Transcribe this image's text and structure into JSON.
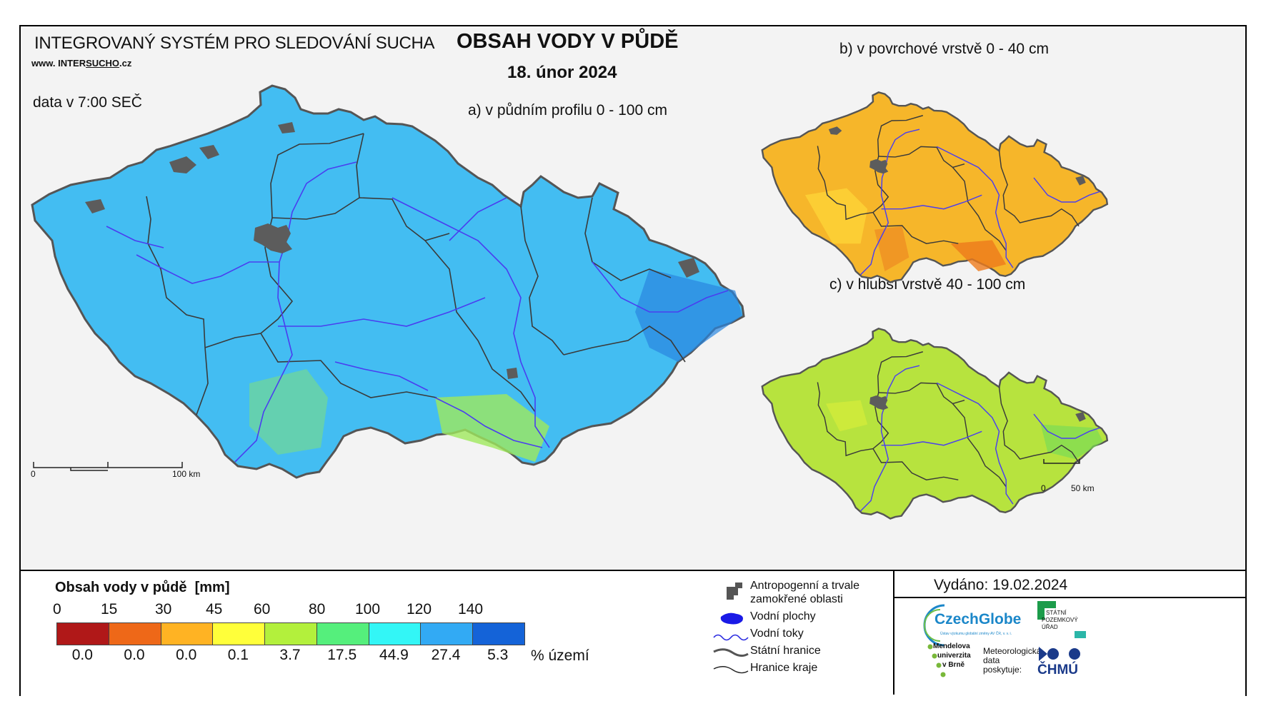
{
  "header": {
    "system_title": "INTEGROVANÝ SYSTÉM PRO SLEDOVÁNÍ SUCHA",
    "website_prefix": "www. INTER",
    "website_highlight": "SUCHO",
    "website_suffix": ".cz",
    "data_time": "data v 7:00 SEČ",
    "main_title": "OBSAH VODY V PŮDĚ",
    "date": "18. únor 2024"
  },
  "maps": {
    "a_label": "a) v půdním profilu 0 - 100 cm",
    "b_label": "b) v povrchové vrstvě 0 - 40 cm",
    "c_label": "c) v hlubší vrstvě 40 - 100 cm",
    "scale_a": {
      "zero": "0",
      "end": "100 km"
    },
    "scale_small": {
      "zero": "0",
      "end": "50 km"
    },
    "fill_a": "#43bdf2",
    "fill_b": "#f6b62a",
    "fill_c": "#b7e33e"
  },
  "legend": {
    "title": "Obsah vody v půdě  [mm]",
    "thresholds": [
      "0",
      "15",
      "30",
      "45",
      "60",
      "80",
      "100",
      "120",
      "140"
    ],
    "classes": [
      {
        "color": "#b01818",
        "pct": "0.0"
      },
      {
        "color": "#ee6818",
        "pct": "0.0"
      },
      {
        "color": "#ffb323",
        "pct": "0.0"
      },
      {
        "color": "#ffff3a",
        "pct": "0.1"
      },
      {
        "color": "#b3f03c",
        "pct": "3.7"
      },
      {
        "color": "#55ef7c",
        "pct": "17.5"
      },
      {
        "color": "#33f6f6",
        "pct": "44.9"
      },
      {
        "color": "#32aaf4",
        "pct": "27.4"
      },
      {
        "color": "#1463d8",
        "pct": "5.3"
      }
    ],
    "pct_unit": "% území"
  },
  "symbols": {
    "items": [
      {
        "icon": "urban-area-icon",
        "label_line1": "Antropogenní a trvale",
        "label_line2": "zamokřené oblasti"
      },
      {
        "icon": "water-body-icon",
        "label_line1": "Vodní plochy",
        "label_line2": ""
      },
      {
        "icon": "river-icon",
        "label_line1": "Vodní toky",
        "label_line2": ""
      },
      {
        "icon": "state-border-icon",
        "label_line1": "Státní hranice",
        "label_line2": ""
      },
      {
        "icon": "region-border-icon",
        "label_line1": "Hranice kraje",
        "label_line2": ""
      }
    ]
  },
  "issued": "Vydáno: 19.02.2024",
  "logos": {
    "czechglobe": "CzechGlobe",
    "czechglobe_sub": "Ústav výzkumu globální změny AV ČR, v. v. i.",
    "spu_line1": "STÁTNÍ",
    "spu_line2": "POZEMKOVÝ",
    "spu_line3": "ÚŘAD",
    "mendel_line1": "Mendelova",
    "mendel_line2": "univerzita",
    "mendel_line3": "v Brně",
    "met_line1": "Meteorologická",
    "met_line2": "data",
    "met_line3": "poskytuje:",
    "chmu": "ČHMÚ"
  }
}
